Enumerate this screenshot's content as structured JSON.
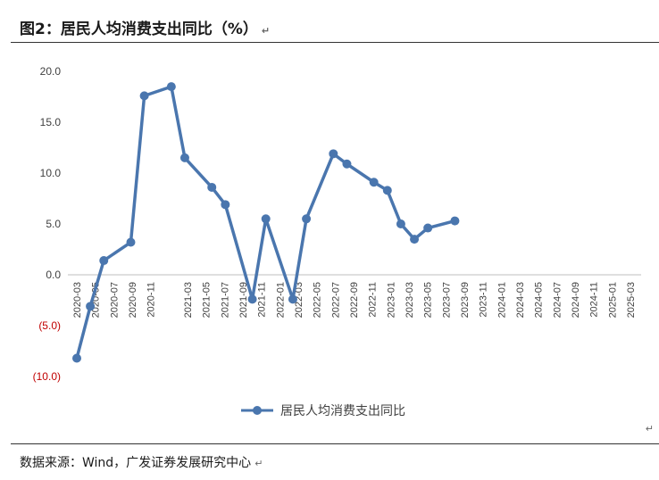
{
  "header": {
    "title": "图2：居民人均消费支出同比（%）",
    "mark": "↵"
  },
  "footer": {
    "source": "数据来源：Wind，广发证券发展研究中心",
    "mark": "↵"
  },
  "colors": {
    "series": "#4a76ae",
    "negative_tick": "#c00000",
    "grid_zero": "#bfbfbf"
  },
  "chart_data": {
    "type": "line",
    "title": "",
    "xlabel": "",
    "ylabel": "",
    "ylim": [
      -10,
      20
    ],
    "yticks": [
      {
        "value": 20,
        "label": "20.0"
      },
      {
        "value": 15,
        "label": "15.0"
      },
      {
        "value": 10,
        "label": "10.0"
      },
      {
        "value": 5,
        "label": "5.0"
      },
      {
        "value": 0,
        "label": "0.0"
      },
      {
        "value": -5,
        "label": "(5.0)"
      },
      {
        "value": -10,
        "label": "(10.0)"
      }
    ],
    "categories": [
      "2020-03",
      "2020-05",
      "2020-07",
      "2020-09",
      "2020-11",
      "2021-03",
      "2021-05",
      "2021-07",
      "2021-09",
      "2021-11",
      "2022-01",
      "2022-03",
      "2022-05",
      "2022-07",
      "2022-09",
      "2022-11",
      "2023-01",
      "2023-03",
      "2023-05",
      "2023-07",
      "2023-09",
      "2023-11",
      "2024-01",
      "2024-03",
      "2024-05",
      "2024-07",
      "2024-09",
      "2024-11",
      "2025-01",
      "2025-03"
    ],
    "series": [
      {
        "name": "居民人均消费支出同比",
        "x": [
          0,
          1,
          2,
          4,
          5,
          7,
          8,
          10,
          11,
          13,
          14,
          16,
          17,
          19,
          20,
          22,
          23,
          24,
          25,
          26,
          28,
          29,
          30,
          32,
          33,
          34,
          36,
          37,
          39,
          41
        ],
        "values": [
          -8.2,
          -3.1,
          1.4,
          3.2,
          17.6,
          18.5,
          11.5,
          8.6,
          6.9,
          -2.4,
          5.5,
          -2.4,
          5.5,
          11.9,
          10.9,
          9.1,
          8.3,
          5.0,
          3.5,
          4.6,
          5.3,
          null,
          null,
          null,
          null,
          null,
          null,
          null,
          null,
          null
        ]
      }
    ],
    "legend": {
      "position": "bottom",
      "label": "居民人均消费支出同比"
    },
    "grid": false
  }
}
